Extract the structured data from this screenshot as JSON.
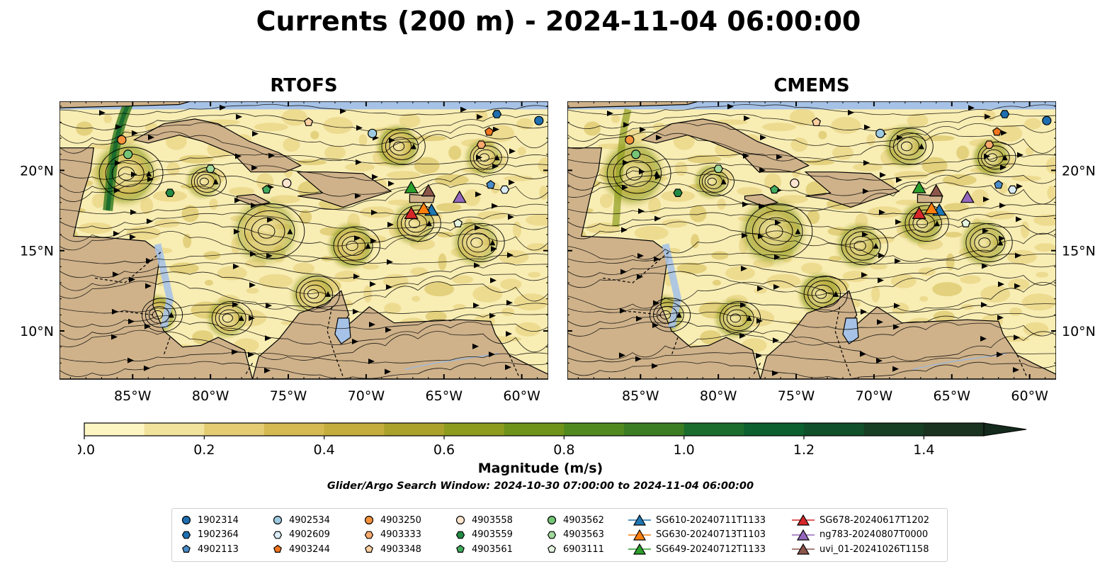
{
  "title": "Currents (200 m) - 2024-11-04 06:00:00",
  "panels": [
    {
      "title": "RTOFS"
    },
    {
      "title": "CMEMS"
    }
  ],
  "lon_ticks": [
    "85°W",
    "80°W",
    "75°W",
    "70°W",
    "65°W",
    "60°W"
  ],
  "lat_ticks": [
    "20°N",
    "15°N",
    "10°N"
  ],
  "map_extent": {
    "lon_min": -89.7,
    "lon_max": -58.3,
    "lat_min": 7.0,
    "lat_max": 24.3
  },
  "colorbar": {
    "label": "Magnitude (m/s)",
    "ticks": [
      "0.0",
      "0.2",
      "0.4",
      "0.6",
      "0.8",
      "1.0",
      "1.2",
      "1.4"
    ],
    "min": 0.0,
    "max": 1.5,
    "extend": "max",
    "colors": [
      "#fdf6c2",
      "#f1e29c",
      "#e3cc72",
      "#d4ba50",
      "#c4ad3c",
      "#aaa22b",
      "#8e9c1e",
      "#6f9319",
      "#508a1f",
      "#3b7d22",
      "#1b6d2d",
      "#0c602f",
      "#10502a",
      "#173f24",
      "#1a3220"
    ]
  },
  "search_window": "Glider/Argo Search Window: 2024-10-30 07:00:00 to 2024-11-04 06:00:00",
  "legend": {
    "columns": [
      [
        {
          "label": "1902314",
          "marker": "circle",
          "color": "#1f6fb0"
        },
        {
          "label": "1902364",
          "marker": "hexagon",
          "color": "#1f6fb0"
        },
        {
          "label": "4902113",
          "marker": "pentagon",
          "color": "#4a8cc8"
        }
      ],
      [
        {
          "label": "4902534",
          "marker": "circle",
          "color": "#9ecae1"
        },
        {
          "label": "4902609",
          "marker": "hexagon",
          "color": "#d9ecf7"
        },
        {
          "label": "4903244",
          "marker": "pentagon",
          "color": "#f0751e"
        }
      ],
      [
        {
          "label": "4903250",
          "marker": "circle",
          "color": "#f5923d"
        },
        {
          "label": "4903333",
          "marker": "hexagon",
          "color": "#fbaa6c"
        },
        {
          "label": "4903348",
          "marker": "pentagon",
          "color": "#fdd0a2"
        }
      ],
      [
        {
          "label": "4903558",
          "marker": "circle",
          "color": "#fde6d0"
        },
        {
          "label": "4903559",
          "marker": "hexagon",
          "color": "#238b45"
        },
        {
          "label": "4903561",
          "marker": "pentagon",
          "color": "#41ab5d"
        }
      ],
      [
        {
          "label": "4903562",
          "marker": "circle",
          "color": "#74c476"
        },
        {
          "label": "4903563",
          "marker": "hexagon",
          "color": "#a1d99b"
        },
        {
          "label": "6903111",
          "marker": "pentagon",
          "color": "#e5f5e0"
        }
      ],
      [
        {
          "label": "SG610-20240711T1133",
          "marker": "triangle",
          "color": "#1f77b4"
        },
        {
          "label": "SG630-20240713T1103",
          "marker": "triangle",
          "color": "#ff7f0e"
        },
        {
          "label": "SG649-20240712T1133",
          "marker": "triangle",
          "color": "#2ca02c"
        }
      ],
      [
        {
          "label": "SG678-20240617T1202",
          "marker": "triangle",
          "color": "#d62728"
        },
        {
          "label": "ng783-20240807T0000",
          "marker": "triangle",
          "color": "#9467bd"
        },
        {
          "label": "uvi_01-20241026T1158",
          "marker": "triangle",
          "color": "#8c564b"
        }
      ]
    ]
  },
  "platforms": [
    {
      "id": "1902314",
      "lon": -58.9,
      "lat": 23.1
    },
    {
      "id": "1902364",
      "lon": -61.6,
      "lat": 23.5
    },
    {
      "id": "4902113",
      "lon": -62.0,
      "lat": 19.1
    },
    {
      "id": "4902534",
      "lon": -69.6,
      "lat": 22.3
    },
    {
      "id": "4902609",
      "lon": -61.1,
      "lat": 18.8
    },
    {
      "id": "4903244",
      "lon": -62.1,
      "lat": 22.4
    },
    {
      "id": "4903250",
      "lon": -85.7,
      "lat": 21.9
    },
    {
      "id": "4903333",
      "lon": -62.6,
      "lat": 21.6
    },
    {
      "id": "4903348",
      "lon": -73.7,
      "lat": 23.0
    },
    {
      "id": "4903558",
      "lon": -75.1,
      "lat": 19.2
    },
    {
      "id": "4903559",
      "lon": -82.6,
      "lat": 18.6
    },
    {
      "id": "4903561",
      "lon": -76.4,
      "lat": 18.8
    },
    {
      "id": "4903562",
      "lon": -85.3,
      "lat": 21.0
    },
    {
      "id": "4903563",
      "lon": -80.0,
      "lat": 20.1
    },
    {
      "id": "6903111",
      "lon": -64.1,
      "lat": 16.7
    },
    {
      "id": "SG610-20240711T1133",
      "lon": -65.8,
      "lat": 17.5
    },
    {
      "id": "SG630-20240713T1103",
      "lon": -66.3,
      "lat": 17.6
    },
    {
      "id": "SG649-20240712T1133",
      "lon": -67.1,
      "lat": 18.9
    },
    {
      "id": "SG678-20240617T1202",
      "lon": -67.1,
      "lat": 17.3
    },
    {
      "id": "ng783-20240807T0000",
      "lon": -64.0,
      "lat": 18.3
    },
    {
      "id": "uvi_01-20241026T1158",
      "lon": -66.0,
      "lat": 18.7
    }
  ],
  "eddies": [
    {
      "lon": -85.5,
      "lat": 19.8,
      "r": 2.2
    },
    {
      "lon": -80.5,
      "lat": 19.3,
      "r": 1.2
    },
    {
      "lon": -76.5,
      "lat": 16.2,
      "r": 2.3
    },
    {
      "lon": -71.0,
      "lat": 15.3,
      "r": 1.6
    },
    {
      "lon": -67.0,
      "lat": 16.7,
      "r": 1.5
    },
    {
      "lon": -63.0,
      "lat": 15.5,
      "r": 1.6
    },
    {
      "lon": -83.5,
      "lat": 11.0,
      "r": 1.4
    },
    {
      "lon": -79.0,
      "lat": 10.8,
      "r": 1.4
    },
    {
      "lon": -73.5,
      "lat": 12.3,
      "r": 1.5
    },
    {
      "lon": -68.0,
      "lat": 21.5,
      "r": 1.5
    },
    {
      "lon": -62.5,
      "lat": 20.8,
      "r": 1.3
    }
  ]
}
